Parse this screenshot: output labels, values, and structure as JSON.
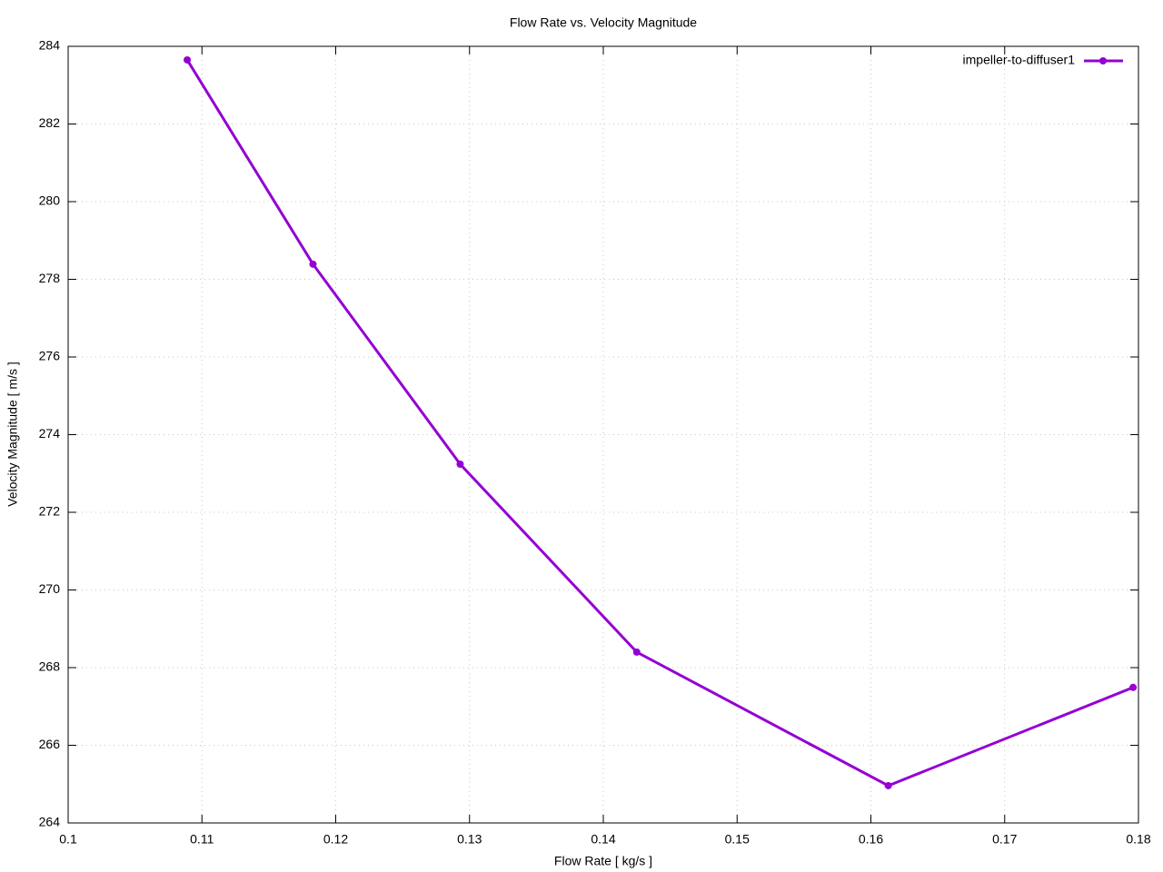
{
  "chart_data": {
    "type": "line",
    "title": "Flow Rate vs. Velocity Magnitude",
    "x_label": "Flow Rate [ kg/s ]",
    "y_label": "Velocity Magnitude [ m/s ]",
    "x": [
      0.1089,
      0.1183,
      0.1293,
      0.1425,
      0.1613,
      0.1796
    ],
    "series": [
      {
        "name": "impeller-to-diffuser1",
        "color": "#9400d3",
        "values": [
          283.65,
          278.39,
          273.24,
          268.4,
          264.96,
          267.49
        ]
      }
    ],
    "xlim": [
      0.1,
      0.18
    ],
    "xticks": [
      0.1,
      0.11,
      0.12,
      0.13,
      0.14,
      0.15,
      0.16,
      0.17,
      0.18
    ],
    "ylim": [
      264,
      284
    ],
    "yticks": [
      264,
      266,
      268,
      270,
      272,
      274,
      276,
      278,
      280,
      282,
      284
    ],
    "grid": true,
    "legend": "top-right"
  }
}
